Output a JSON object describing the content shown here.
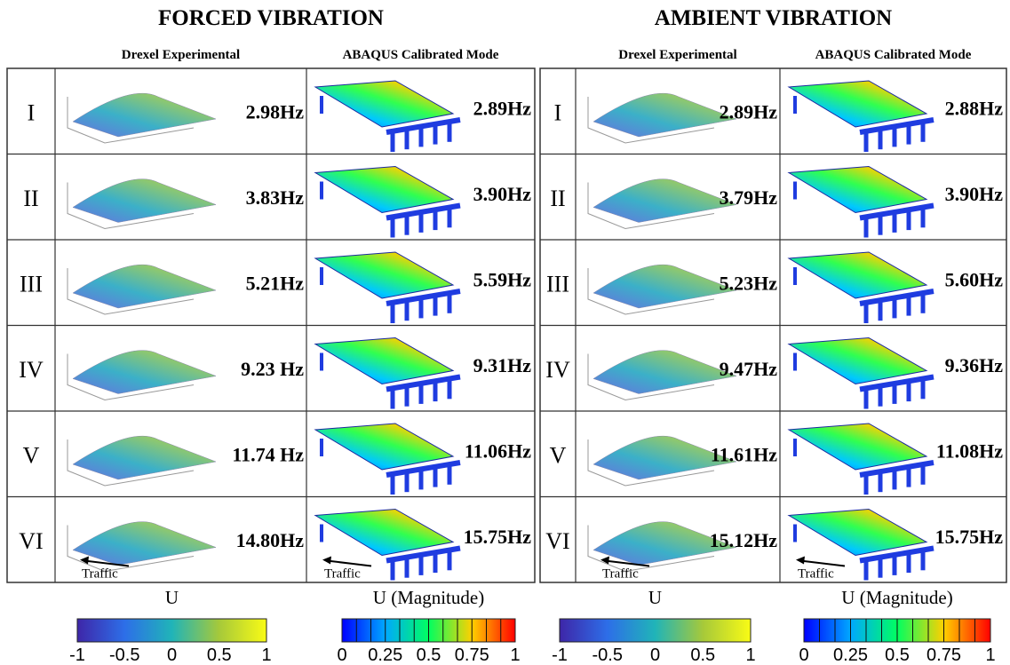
{
  "panels": [
    {
      "title": "FORCED VIBRATION",
      "headers": [
        "Drexel Experimental",
        "ABAQUS Calibrated Mode"
      ],
      "rows": [
        {
          "mode": "I",
          "experimental": "2.98Hz",
          "abaqus": "2.89Hz"
        },
        {
          "mode": "II",
          "experimental": "3.83Hz",
          "abaqus": "3.90Hz"
        },
        {
          "mode": "III",
          "experimental": "5.21Hz",
          "abaqus": "5.59Hz"
        },
        {
          "mode": "IV",
          "experimental": "9.23 Hz",
          "abaqus": "9.31Hz"
        },
        {
          "mode": "V",
          "experimental": "11.74 Hz",
          "abaqus": "11.06Hz"
        },
        {
          "mode": "VI",
          "experimental": "14.80Hz",
          "abaqus": "15.75Hz"
        }
      ],
      "traffic_labels": [
        "Traffic",
        "Traffic"
      ],
      "colorbars": [
        {
          "label": "U",
          "ticks": [
            "-1",
            "-0.5",
            "0",
            "0.5",
            "1"
          ]
        },
        {
          "label": "U (Magnitude)",
          "ticks": [
            "0",
            "0.25",
            "0.5",
            "0.75",
            "1"
          ]
        }
      ]
    },
    {
      "title": "AMBIENT VIBRATION",
      "headers": [
        "Drexel Experimental",
        "ABAQUS Calibrated Mode"
      ],
      "rows": [
        {
          "mode": "I",
          "experimental": "2.89Hz",
          "abaqus": "2.88Hz"
        },
        {
          "mode": "II",
          "experimental": "3.79Hz",
          "abaqus": "3.90Hz"
        },
        {
          "mode": "III",
          "experimental": "5.23Hz",
          "abaqus": "5.60Hz"
        },
        {
          "mode": "IV",
          "experimental": "9.47Hz",
          "abaqus": "9.36Hz"
        },
        {
          "mode": "V",
          "experimental": "11.61Hz",
          "abaqus": "11.08Hz"
        },
        {
          "mode": "VI",
          "experimental": "15.12Hz",
          "abaqus": "15.75Hz"
        }
      ],
      "traffic_labels": [
        "Traffic",
        "Traffic"
      ],
      "colorbars": [
        {
          "label": "U",
          "ticks": [
            "-1",
            "-0.5",
            "0",
            "0.5",
            "1"
          ]
        },
        {
          "label": "U (Magnitude)",
          "ticks": [
            "0",
            "0.25",
            "0.5",
            "0.75",
            "1"
          ]
        }
      ]
    }
  ]
}
